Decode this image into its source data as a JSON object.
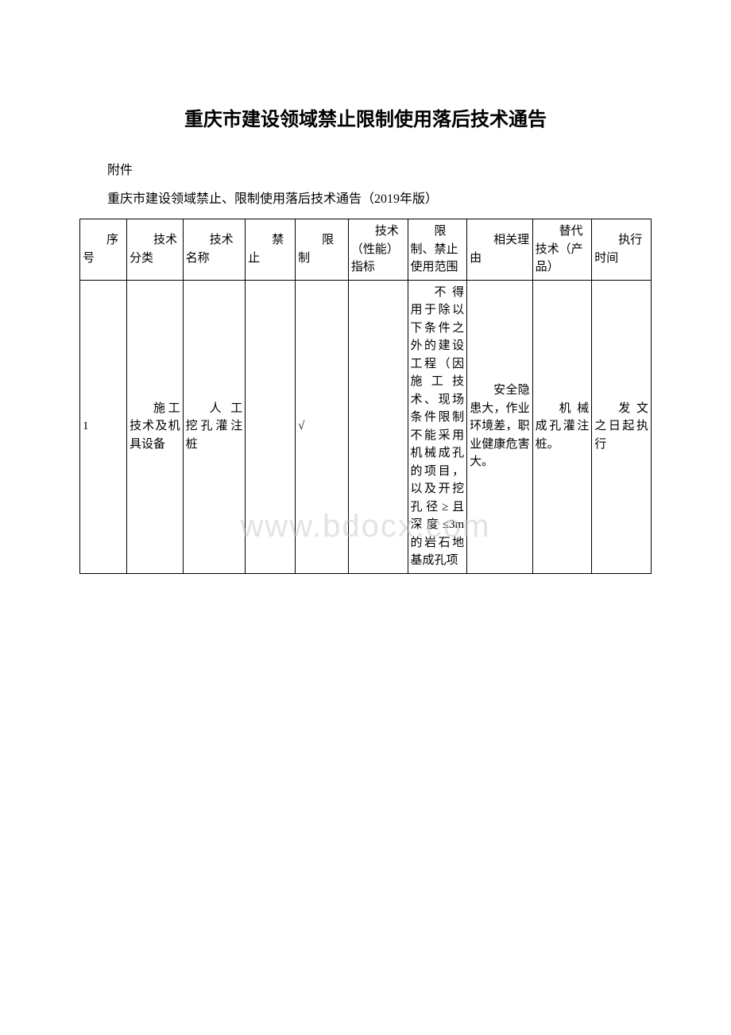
{
  "document": {
    "title": "重庆市建设领域禁止限制使用落后技术通告",
    "attachment_label": "附件",
    "subtitle": "重庆市建设领域禁止、限制使用落后技术通告（2019年版）",
    "watermark": "www.bdocx.com"
  },
  "table": {
    "headers": {
      "seq": "序号",
      "category": "技术分类",
      "tech_name": "技术名称",
      "prohibited": "禁止",
      "restricted": "限制",
      "tech_index": "技术（性能）指标",
      "scope": "限制、禁止使用范围",
      "reason": "相关理由",
      "alternative": "替代技术（产品）",
      "exec_time": "执行时间"
    },
    "rows": [
      {
        "seq": "1",
        "category": "施工技术及机具设备",
        "tech_name": "人工挖孔灌注桩",
        "prohibited": "",
        "restricted": "√",
        "tech_index": "",
        "scope": "不得用于除以下条件之外的建设工程（因施工技术、现场条件限制不能采用机械成孔的项目，以及开挖孔径≥且深度≤3m的岩石地基成孔项",
        "reason": "安全隐患大，作业环境差，职业健康危害大。",
        "alternative": "机械成孔灌注桩。",
        "exec_time": "发文之日起执行"
      }
    ]
  }
}
